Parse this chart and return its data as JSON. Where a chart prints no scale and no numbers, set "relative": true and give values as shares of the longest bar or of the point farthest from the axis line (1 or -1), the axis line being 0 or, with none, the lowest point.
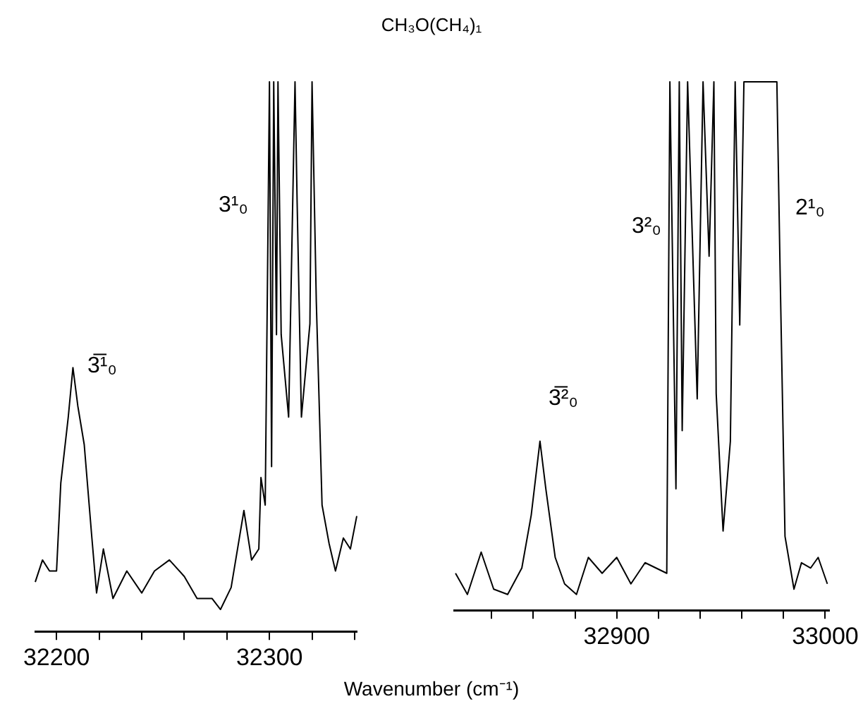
{
  "chart_data": [
    {
      "type": "line",
      "relative": true,
      "grid": false,
      "marker": "none",
      "legend": false,
      "tick_labels": "x",
      "xlim": [
        32190,
        32341
      ],
      "xticks": [
        32200,
        {
          "value": 32220,
          "label": null
        },
        {
          "value": 32240,
          "label": null
        },
        {
          "value": 32260,
          "label": null
        },
        {
          "value": 32280,
          "label": null
        },
        32300,
        {
          "value": 32320,
          "label": null
        },
        {
          "value": 32340,
          "label": null
        }
      ],
      "annotations": [
        "3̅¹₀",
        "3¹₀"
      ],
      "series": [
        {
          "color": "#000000",
          "x": [
            32190,
            32193.4,
            32196.7,
            32200,
            32202,
            32205.5,
            32207.7,
            32210,
            32213,
            32216.6,
            32218.8,
            32222,
            32226.5,
            32233,
            32240,
            32246,
            32253,
            32260,
            32266,
            32273,
            32277,
            32282,
            32288,
            32291.6,
            32295,
            32296,
            32298,
            32300,
            32301,
            32302,
            32303.3,
            32304,
            32305.5,
            32309,
            32312,
            32313,
            32315,
            32319,
            32320,
            32322,
            32324.7,
            32328,
            32331,
            32334.7,
            32338,
            32341
          ],
          "values": [
            0.09,
            0.13,
            0.11,
            0.11,
            0.27,
            0.39,
            0.48,
            0.41,
            0.34,
            0.17,
            0.07,
            0.15,
            0.06,
            0.11,
            0.07,
            0.11,
            0.13,
            0.1,
            0.06,
            0.06,
            0.04,
            0.08,
            0.22,
            0.13,
            0.15,
            0.28,
            0.23,
            1,
            0.3,
            1,
            0.54,
            1,
            0.54,
            0.39,
            1,
            0.78,
            0.39,
            0.56,
            1,
            0.6,
            0.23,
            0.16,
            0.11,
            0.17,
            0.15,
            0.21
          ]
        }
      ]
    },
    {
      "type": "line",
      "title": "CH₃O(CH₄)₁",
      "xlabel": "Wavenumber (cm⁻¹)",
      "relative": true,
      "grid": false,
      "marker": "none",
      "legend": false,
      "tick_labels": "x",
      "xlim": [
        32822,
        33002
      ],
      "xticks": [
        {
          "value": 32840,
          "label": null
        },
        {
          "value": 32860,
          "label": null
        },
        {
          "value": 32880,
          "label": null
        },
        32900,
        {
          "value": 32920,
          "label": null
        },
        {
          "value": 32940,
          "label": null
        },
        {
          "value": 32960,
          "label": null
        },
        {
          "value": 32980,
          "label": null
        },
        33000
      ],
      "annotations": [
        "3̅²₀",
        "3²₀",
        "2¹₀"
      ],
      "series": [
        {
          "color": "#000000",
          "x": [
            32822.7,
            32828.4,
            32835,
            32841,
            32847.7,
            32854.5,
            32859,
            32863.2,
            32866,
            32870.5,
            32875,
            32880.7,
            32886.4,
            32893,
            32900,
            32906.8,
            32913.6,
            32924,
            32925.5,
            32928.4,
            32930,
            32931.4,
            32934,
            32938.6,
            32941.4,
            32944.3,
            32946.6,
            32947.7,
            32951,
            32954.5,
            32956.8,
            32959,
            32961,
            32976.8,
            32978.4,
            32980.7,
            32985,
            32988.6,
            32993,
            32996.6,
            33001
          ],
          "values": [
            0.07,
            0.03,
            0.11,
            0.04,
            0.03,
            0.08,
            0.18,
            0.32,
            0.23,
            0.1,
            0.05,
            0.03,
            0.1,
            0.07,
            0.1,
            0.05,
            0.09,
            0.07,
            1,
            0.23,
            1,
            0.34,
            1,
            0.4,
            1,
            0.67,
            1,
            0.41,
            0.15,
            0.32,
            1,
            0.54,
            1,
            1,
            0.63,
            0.14,
            0.04,
            0.09,
            0.08,
            0.1,
            0.05
          ]
        }
      ]
    }
  ]
}
